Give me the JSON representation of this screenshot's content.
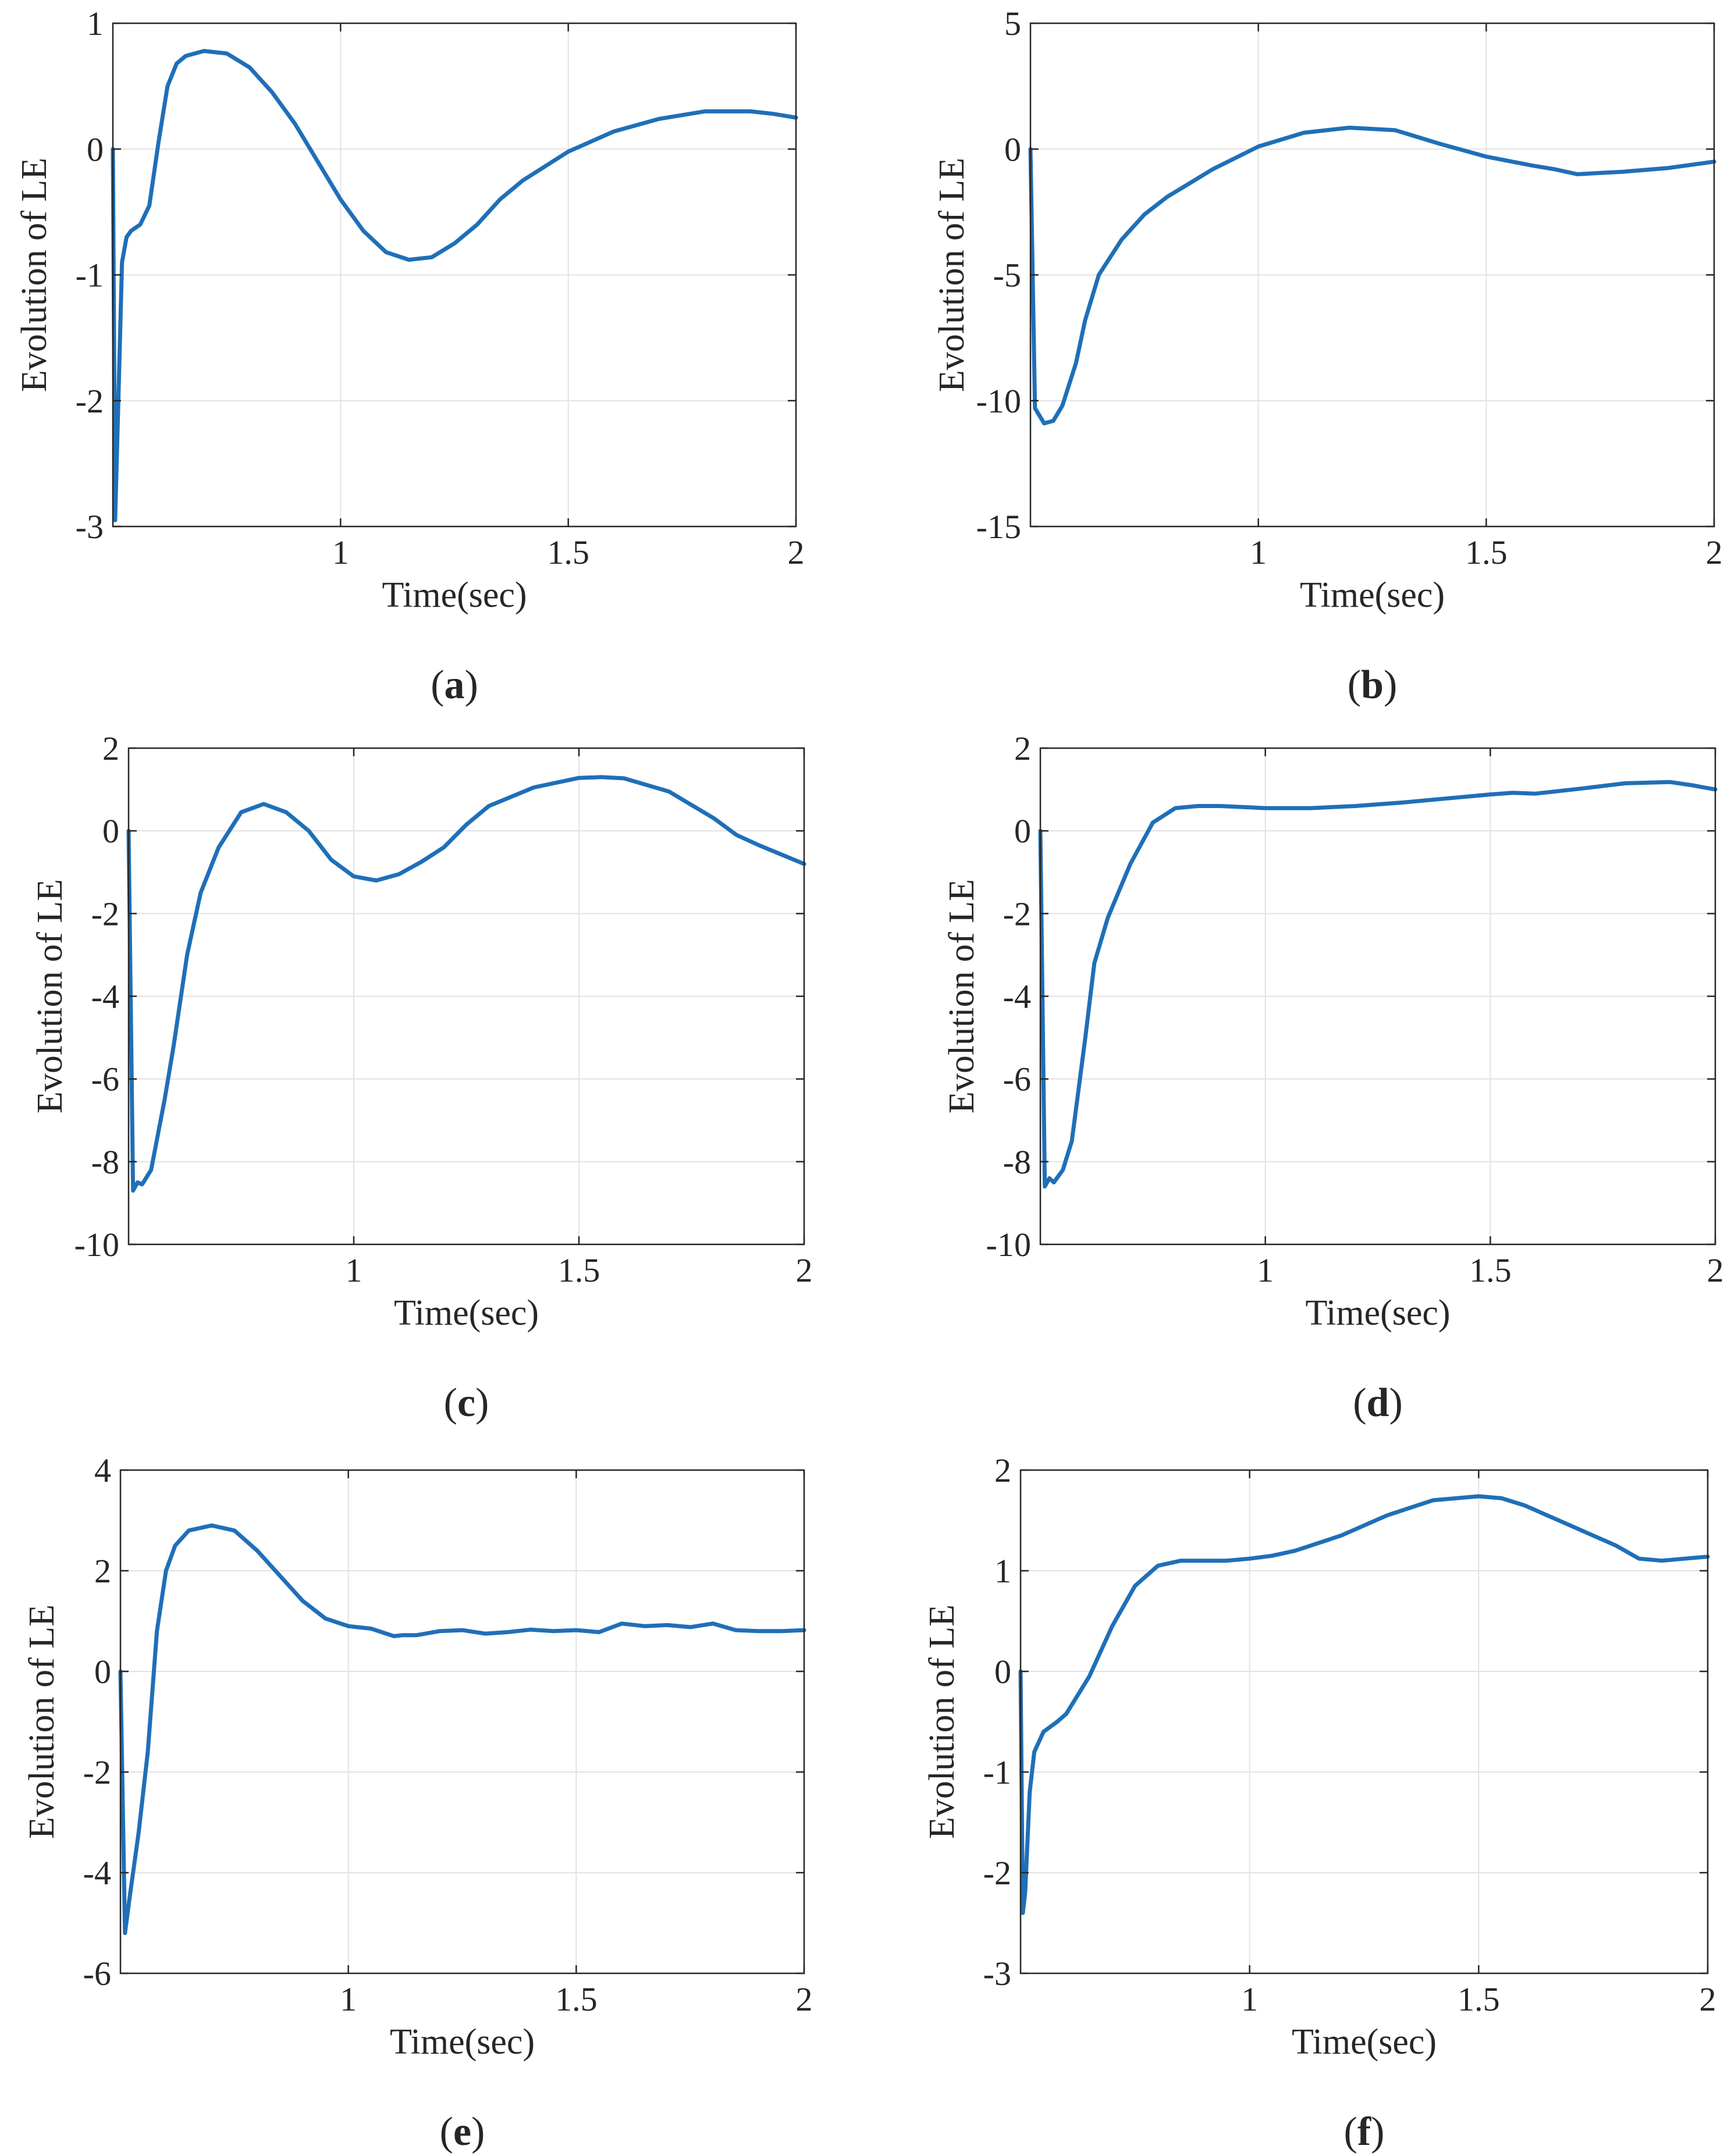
{
  "figure": {
    "colors": {
      "line": "#1f6fb8",
      "grid": "#e2e2e2",
      "axis": "#262626"
    },
    "chart_data": [
      {
        "id": "a",
        "type": "line",
        "caption_open": "(",
        "caption_letter": "a",
        "caption_close": ")",
        "xlabel": "Time(sec)",
        "ylabel": "Evolution of LE",
        "xlim": [
          0.5,
          2
        ],
        "ylim": [
          -3,
          1
        ],
        "xticks": [
          1,
          1.5,
          2
        ],
        "xtick_labels": [
          "1",
          "1.5",
          "2"
        ],
        "yticks": [
          -3,
          -2,
          -1,
          0,
          1
        ],
        "ytick_labels": [
          "-3",
          "-2",
          "-1",
          "0",
          "1"
        ],
        "grid": true,
        "series": [
          {
            "name": "LE",
            "x": [
              0.5,
              0.505,
              0.512,
              0.52,
              0.53,
              0.54,
              0.56,
              0.58,
              0.6,
              0.62,
              0.64,
              0.66,
              0.7,
              0.75,
              0.8,
              0.85,
              0.9,
              0.95,
              1.0,
              1.05,
              1.1,
              1.15,
              1.2,
              1.25,
              1.3,
              1.35,
              1.4,
              1.5,
              1.6,
              1.7,
              1.8,
              1.9,
              1.95,
              2.0
            ],
            "y": [
              0,
              -2.95,
              -2.0,
              -0.9,
              -0.7,
              -0.65,
              -0.6,
              -0.45,
              0.05,
              0.5,
              0.68,
              0.74,
              0.78,
              0.76,
              0.65,
              0.45,
              0.2,
              -0.1,
              -0.4,
              -0.65,
              -0.82,
              -0.88,
              -0.86,
              -0.75,
              -0.6,
              -0.4,
              -0.25,
              -0.02,
              0.14,
              0.24,
              0.3,
              0.3,
              0.28,
              0.25
            ]
          }
        ]
      },
      {
        "id": "b",
        "type": "line",
        "caption_open": "(",
        "caption_letter": "b",
        "caption_close": ")",
        "xlabel": "Time(sec)",
        "ylabel": "Evolution of LE",
        "xlim": [
          0.5,
          2
        ],
        "ylim": [
          -15,
          5
        ],
        "xticks": [
          1,
          1.5,
          2
        ],
        "xtick_labels": [
          "1",
          "1.5",
          "2"
        ],
        "yticks": [
          -15,
          -10,
          -5,
          0,
          5
        ],
        "ytick_labels": [
          "-15",
          "-10",
          "-5",
          "0",
          "5"
        ],
        "grid": true,
        "series": [
          {
            "name": "LE",
            "x": [
              0.5,
              0.51,
              0.53,
              0.55,
              0.57,
              0.6,
              0.62,
              0.65,
              0.7,
              0.75,
              0.8,
              0.9,
              1.0,
              1.1,
              1.2,
              1.3,
              1.4,
              1.5,
              1.6,
              1.65,
              1.7,
              1.75,
              1.8,
              1.9,
              2.0
            ],
            "y": [
              0,
              -10.3,
              -10.9,
              -10.8,
              -10.2,
              -8.5,
              -6.8,
              -5.0,
              -3.6,
              -2.6,
              -1.9,
              -0.8,
              0.1,
              0.65,
              0.85,
              0.75,
              0.2,
              -0.3,
              -0.65,
              -0.8,
              -1.0,
              -0.95,
              -0.9,
              -0.75,
              -0.5
            ]
          }
        ]
      },
      {
        "id": "c",
        "type": "line",
        "caption_open": "(",
        "caption_letter": "c",
        "caption_close": ")",
        "xlabel": "Time(sec)",
        "ylabel": "Evolution of LE",
        "xlim": [
          0.5,
          2
        ],
        "ylim": [
          -10,
          2
        ],
        "xticks": [
          1,
          1.5,
          2
        ],
        "xtick_labels": [
          "1",
          "1.5",
          "2"
        ],
        "yticks": [
          -10,
          -8,
          -6,
          -4,
          -2,
          0,
          2
        ],
        "ytick_labels": [
          "-10",
          "-8",
          "-6",
          "-4",
          "-2",
          "0",
          "2"
        ],
        "grid": true,
        "series": [
          {
            "name": "LE",
            "x": [
              0.5,
              0.51,
              0.52,
              0.53,
              0.55,
              0.58,
              0.6,
              0.63,
              0.66,
              0.7,
              0.75,
              0.8,
              0.85,
              0.9,
              0.95,
              1.0,
              1.05,
              1.1,
              1.15,
              1.2,
              1.25,
              1.3,
              1.4,
              1.5,
              1.55,
              1.6,
              1.7,
              1.8,
              1.85,
              1.9,
              2.0
            ],
            "y": [
              0,
              -8.7,
              -8.5,
              -8.55,
              -8.2,
              -6.5,
              -5.2,
              -3.0,
              -1.5,
              -0.4,
              0.45,
              0.65,
              0.45,
              0.0,
              -0.7,
              -1.1,
              -1.2,
              -1.05,
              -0.75,
              -0.4,
              0.15,
              0.6,
              1.05,
              1.28,
              1.3,
              1.27,
              0.95,
              0.3,
              -0.1,
              -0.35,
              -0.8
            ]
          }
        ]
      },
      {
        "id": "d",
        "type": "line",
        "caption_open": "(",
        "caption_letter": "d",
        "caption_close": ")",
        "xlabel": "Time(sec)",
        "ylabel": "Evolution of LE",
        "xlim": [
          0.5,
          2
        ],
        "ylim": [
          -10,
          2
        ],
        "xticks": [
          1,
          1.5,
          2
        ],
        "xtick_labels": [
          "1",
          "1.5",
          "2"
        ],
        "yticks": [
          -10,
          -8,
          -6,
          -4,
          -2,
          0,
          2
        ],
        "ytick_labels": [
          "-10",
          "-8",
          "-6",
          "-4",
          "-2",
          "0",
          "2"
        ],
        "grid": true,
        "series": [
          {
            "name": "LE",
            "x": [
              0.5,
              0.51,
              0.52,
              0.53,
              0.55,
              0.57,
              0.6,
              0.62,
              0.65,
              0.7,
              0.75,
              0.8,
              0.85,
              0.9,
              1.0,
              1.1,
              1.2,
              1.3,
              1.4,
              1.5,
              1.55,
              1.6,
              1.7,
              1.8,
              1.9,
              1.95,
              2.0
            ],
            "y": [
              0,
              -8.6,
              -8.4,
              -8.5,
              -8.2,
              -7.5,
              -5.0,
              -3.2,
              -2.1,
              -0.8,
              0.2,
              0.55,
              0.6,
              0.6,
              0.55,
              0.55,
              0.6,
              0.68,
              0.78,
              0.88,
              0.92,
              0.9,
              1.02,
              1.15,
              1.18,
              1.1,
              1.0
            ]
          }
        ]
      },
      {
        "id": "e",
        "type": "line",
        "caption_open": "(",
        "caption_letter": "e",
        "caption_close": ")",
        "xlabel": "Time(sec)",
        "ylabel": "Evolution of LE",
        "xlim": [
          0.5,
          2
        ],
        "ylim": [
          -6,
          4
        ],
        "xticks": [
          1,
          1.5,
          2
        ],
        "xtick_labels": [
          "1",
          "1.5",
          "2"
        ],
        "yticks": [
          -6,
          -4,
          -2,
          0,
          2,
          4
        ],
        "ytick_labels": [
          "-6",
          "-4",
          "-2",
          "0",
          "2",
          "4"
        ],
        "grid": true,
        "series": [
          {
            "name": "LE",
            "x": [
              0.5,
              0.51,
              0.52,
              0.54,
              0.56,
              0.58,
              0.6,
              0.62,
              0.65,
              0.7,
              0.75,
              0.8,
              0.85,
              0.9,
              0.95,
              1.0,
              1.05,
              1.1,
              1.12,
              1.15,
              1.2,
              1.25,
              1.3,
              1.35,
              1.4,
              1.45,
              1.5,
              1.55,
              1.6,
              1.65,
              1.7,
              1.75,
              1.8,
              1.85,
              1.9,
              1.95,
              2.0
            ],
            "y": [
              0,
              -5.2,
              -4.5,
              -3.2,
              -1.6,
              0.8,
              2.0,
              2.5,
              2.8,
              2.9,
              2.8,
              2.4,
              1.9,
              1.4,
              1.05,
              0.9,
              0.85,
              0.7,
              0.72,
              0.72,
              0.8,
              0.82,
              0.75,
              0.78,
              0.83,
              0.8,
              0.82,
              0.78,
              0.95,
              0.9,
              0.92,
              0.88,
              0.95,
              0.82,
              0.8,
              0.8,
              0.82
            ]
          }
        ]
      },
      {
        "id": "f",
        "type": "line",
        "caption_open": "(",
        "caption_letter": "f",
        "caption_close": ")",
        "xlabel": "Time(sec)",
        "ylabel": "Evolution of LE",
        "xlim": [
          0.5,
          2
        ],
        "ylim": [
          -3,
          2
        ],
        "xticks": [
          1,
          1.5,
          2
        ],
        "xtick_labels": [
          "1",
          "1.5",
          "2"
        ],
        "yticks": [
          -3,
          -2,
          -1,
          0,
          1,
          2
        ],
        "ytick_labels": [
          "-3",
          "-2",
          "-1",
          "0",
          "1",
          "2"
        ],
        "grid": true,
        "series": [
          {
            "name": "LE",
            "x": [
              0.5,
              0.505,
              0.51,
              0.52,
              0.53,
              0.55,
              0.58,
              0.6,
              0.65,
              0.7,
              0.75,
              0.8,
              0.85,
              0.9,
              0.95,
              1.0,
              1.05,
              1.1,
              1.2,
              1.3,
              1.4,
              1.5,
              1.55,
              1.6,
              1.7,
              1.8,
              1.85,
              1.9,
              1.95,
              2.0
            ],
            "y": [
              0,
              -2.4,
              -2.2,
              -1.2,
              -0.8,
              -0.6,
              -0.5,
              -0.42,
              -0.05,
              0.45,
              0.85,
              1.05,
              1.1,
              1.1,
              1.1,
              1.12,
              1.15,
              1.2,
              1.35,
              1.55,
              1.7,
              1.74,
              1.72,
              1.65,
              1.45,
              1.25,
              1.12,
              1.1,
              1.12,
              1.14
            ]
          }
        ]
      }
    ]
  }
}
